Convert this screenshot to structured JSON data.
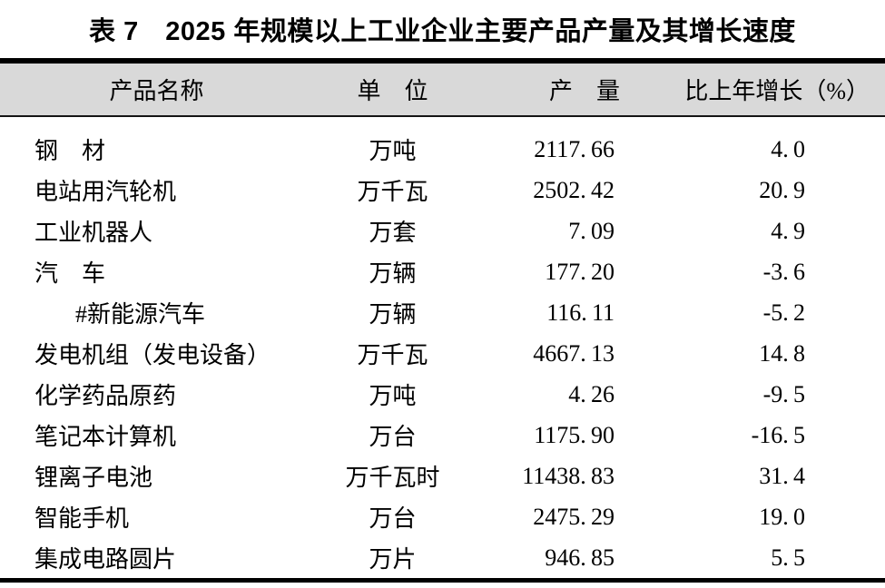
{
  "title": "表 7　2025 年规模以上工业企业主要产品产量及其增长速度",
  "table": {
    "header_bg": "#d9d9d9",
    "rule_color": "#000000",
    "columns": [
      "产品名称",
      "单　位",
      "产　量",
      "比上年增长（%）"
    ],
    "rows": [
      {
        "name": "钢　材",
        "unit": "万吨",
        "output": "2117.66",
        "growth": "4.0",
        "indent": false
      },
      {
        "name": "电站用汽轮机",
        "unit": "万千瓦",
        "output": "2502.42",
        "growth": "20.9",
        "indent": false
      },
      {
        "name": "工业机器人",
        "unit": "万套",
        "output": "7.09",
        "growth": "4.9",
        "indent": false
      },
      {
        "name": "汽　车",
        "unit": "万辆",
        "output": "177.20",
        "growth": "-3.6",
        "indent": false
      },
      {
        "name": "#新能源汽车",
        "unit": "万辆",
        "output": "116.11",
        "growth": "-5.2",
        "indent": true
      },
      {
        "name": "发电机组（发电设备）",
        "unit": "万千瓦",
        "output": "4667.13",
        "growth": "14.8",
        "indent": false
      },
      {
        "name": "化学药品原药",
        "unit": "万吨",
        "output": "4.26",
        "growth": "-9.5",
        "indent": false
      },
      {
        "name": "笔记本计算机",
        "unit": "万台",
        "output": "1175.90",
        "growth": "-16.5",
        "indent": false
      },
      {
        "name": "锂离子电池",
        "unit": "万千瓦时",
        "output": "11438.83",
        "growth": "31.4",
        "indent": false
      },
      {
        "name": "智能手机",
        "unit": "万台",
        "output": "2475.29",
        "growth": "19.0",
        "indent": false
      },
      {
        "name": "集成电路圆片",
        "unit": "万片",
        "output": "946.85",
        "growth": "5.5",
        "indent": false
      }
    ]
  }
}
